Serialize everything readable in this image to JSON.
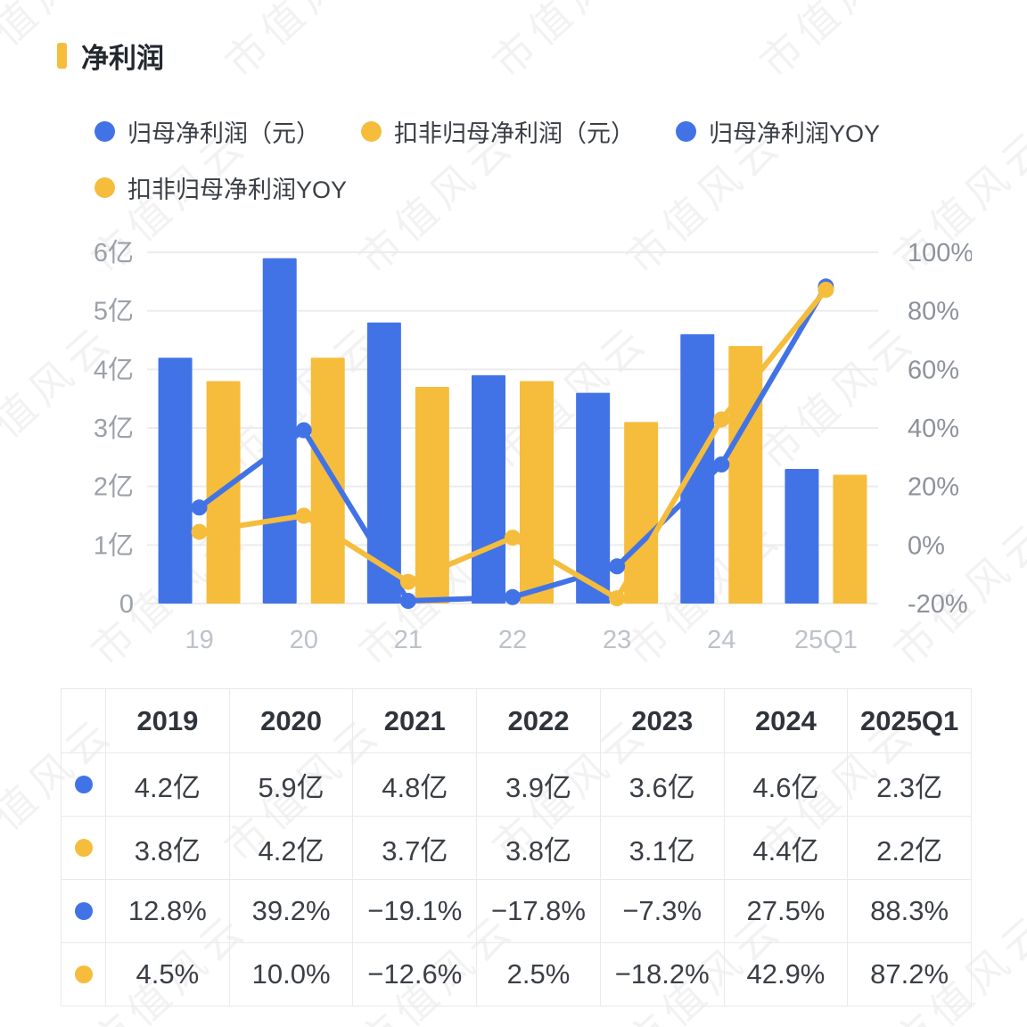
{
  "header": {
    "title": "净利润",
    "accent_color": "#F5BD3B"
  },
  "legend": {
    "items": [
      {
        "label": "归母净利润（元）",
        "color": "#4273E6"
      },
      {
        "label": "扣非归母净利润（元）",
        "color": "#F5BD3B"
      },
      {
        "label": "归母净利润YOY",
        "color": "#4273E6"
      },
      {
        "label": "扣非归母净利润YOY",
        "color": "#F5BD3B"
      }
    ]
  },
  "chart_data": {
    "type": "bar+line",
    "title": "净利润",
    "categories": [
      "19",
      "20",
      "21",
      "22",
      "23",
      "24",
      "25Q1"
    ],
    "bar_series": [
      {
        "name": "归母净利润（元）",
        "unit": "亿",
        "color": "#4273E6",
        "values": [
          4.2,
          5.9,
          4.8,
          3.9,
          3.6,
          4.6,
          2.3
        ]
      },
      {
        "name": "扣非归母净利润（元）",
        "unit": "亿",
        "color": "#F5BD3B",
        "values": [
          3.8,
          4.2,
          3.7,
          3.8,
          3.1,
          4.4,
          2.2
        ]
      }
    ],
    "line_series": [
      {
        "name": "归母净利润YOY",
        "unit": "%",
        "color": "#4273E6",
        "values": [
          12.8,
          39.2,
          -19.1,
          -17.8,
          -7.3,
          27.5,
          88.3
        ]
      },
      {
        "name": "扣非归母净利润YOY",
        "unit": "%",
        "color": "#F5BD3B",
        "values": [
          4.5,
          10.0,
          -12.6,
          2.5,
          -18.2,
          42.9,
          87.2
        ]
      }
    ],
    "left_axis": {
      "ticks": [
        "6亿",
        "5亿",
        "4亿",
        "3亿",
        "2亿",
        "1亿",
        "0"
      ],
      "min": 0,
      "max": 6
    },
    "right_axis": {
      "ticks": [
        "100%",
        "80%",
        "60%",
        "40%",
        "20%",
        "0%",
        "-20%"
      ],
      "min": -20,
      "max": 100
    },
    "grid": true,
    "legend_position": "top"
  },
  "table": {
    "columns": [
      "2019",
      "2020",
      "2021",
      "2022",
      "2023",
      "2024",
      "2025Q1"
    ],
    "rows": [
      {
        "series": "归母净利润（元）",
        "color": "#4273E6",
        "cells": [
          "4.2亿",
          "5.9亿",
          "4.8亿",
          "3.9亿",
          "3.6亿",
          "4.6亿",
          "2.3亿"
        ]
      },
      {
        "series": "扣非归母净利润（元）",
        "color": "#F5BD3B",
        "cells": [
          "3.8亿",
          "4.2亿",
          "3.7亿",
          "3.8亿",
          "3.1亿",
          "4.4亿",
          "2.2亿"
        ]
      },
      {
        "series": "归母净利润YOY",
        "color": "#4273E6",
        "cells": [
          "12.8%",
          "39.2%",
          "−19.1%",
          "−17.8%",
          "−7.3%",
          "27.5%",
          "88.3%"
        ]
      },
      {
        "series": "扣非归母净利润YOY",
        "color": "#F5BD3B",
        "cells": [
          "4.5%",
          "10.0%",
          "−12.6%",
          "2.5%",
          "−18.2%",
          "42.9%",
          "87.2%"
        ]
      }
    ]
  },
  "watermark": {
    "text": "市值风云"
  },
  "colors": {
    "grid": "#ECECEF",
    "axis_left": "#9BA1A8",
    "axis_right": "#8D929A",
    "axis_x": "#BDC2C9"
  }
}
